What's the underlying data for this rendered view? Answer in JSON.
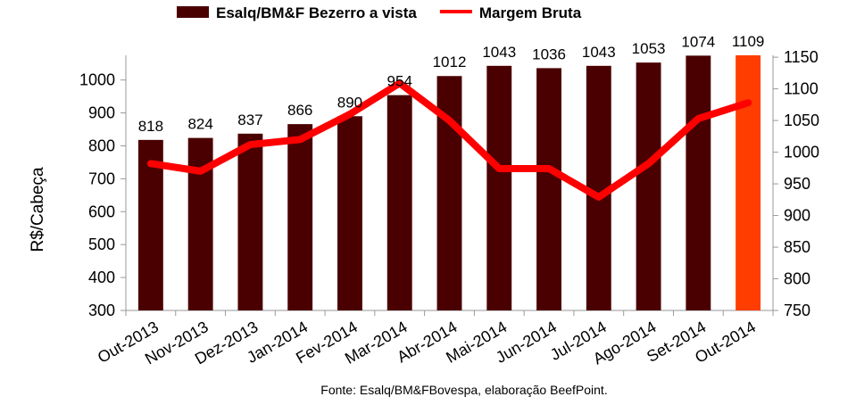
{
  "chart_data": {
    "type": "bar-line",
    "y_label": "R$/Cabeça",
    "source": "Fonte: Esalq/BM&FBovespa, elaboração BeefPoint.",
    "categories": [
      "Out-2013",
      "Nov-2013",
      "Dez-2013",
      "Jan-2014",
      "Fev-2014",
      "Mar-2014",
      "Abr-2014",
      "Mai-2014",
      "Jun-2014",
      "Jul-2014",
      "Ago-2014",
      "Set-2014",
      "Out-2014"
    ],
    "series": [
      {
        "name": "Esalq/BM&F Bezerro a vista",
        "type": "bar",
        "color": "#4a0000",
        "colors": [
          "#4a0000",
          "#4a0000",
          "#4a0000",
          "#4a0000",
          "#4a0000",
          "#4a0000",
          "#4a0000",
          "#4a0000",
          "#4a0000",
          "#4a0000",
          "#4a0000",
          "#4a0000",
          "#ff3d00"
        ],
        "values": [
          818,
          824,
          837,
          866,
          890,
          954,
          1012,
          1043,
          1036,
          1043,
          1053,
          1074,
          1109
        ]
      },
      {
        "name": "Margem Bruta",
        "type": "line",
        "axis": "y2",
        "color": "#ff0000",
        "values": [
          982,
          970,
          1012,
          1020,
          1060,
          1109,
          1050,
          974,
          974,
          929,
          982,
          1053,
          1078
        ]
      }
    ],
    "ylim": [
      300,
      1075
    ],
    "yticks": [
      300,
      400,
      500,
      600,
      700,
      800,
      900,
      1000
    ],
    "y2lim": [
      750,
      1153
    ],
    "y2ticks": [
      750,
      800,
      850,
      900,
      950,
      1000,
      1050,
      1100,
      1150
    ],
    "legend": "top"
  }
}
